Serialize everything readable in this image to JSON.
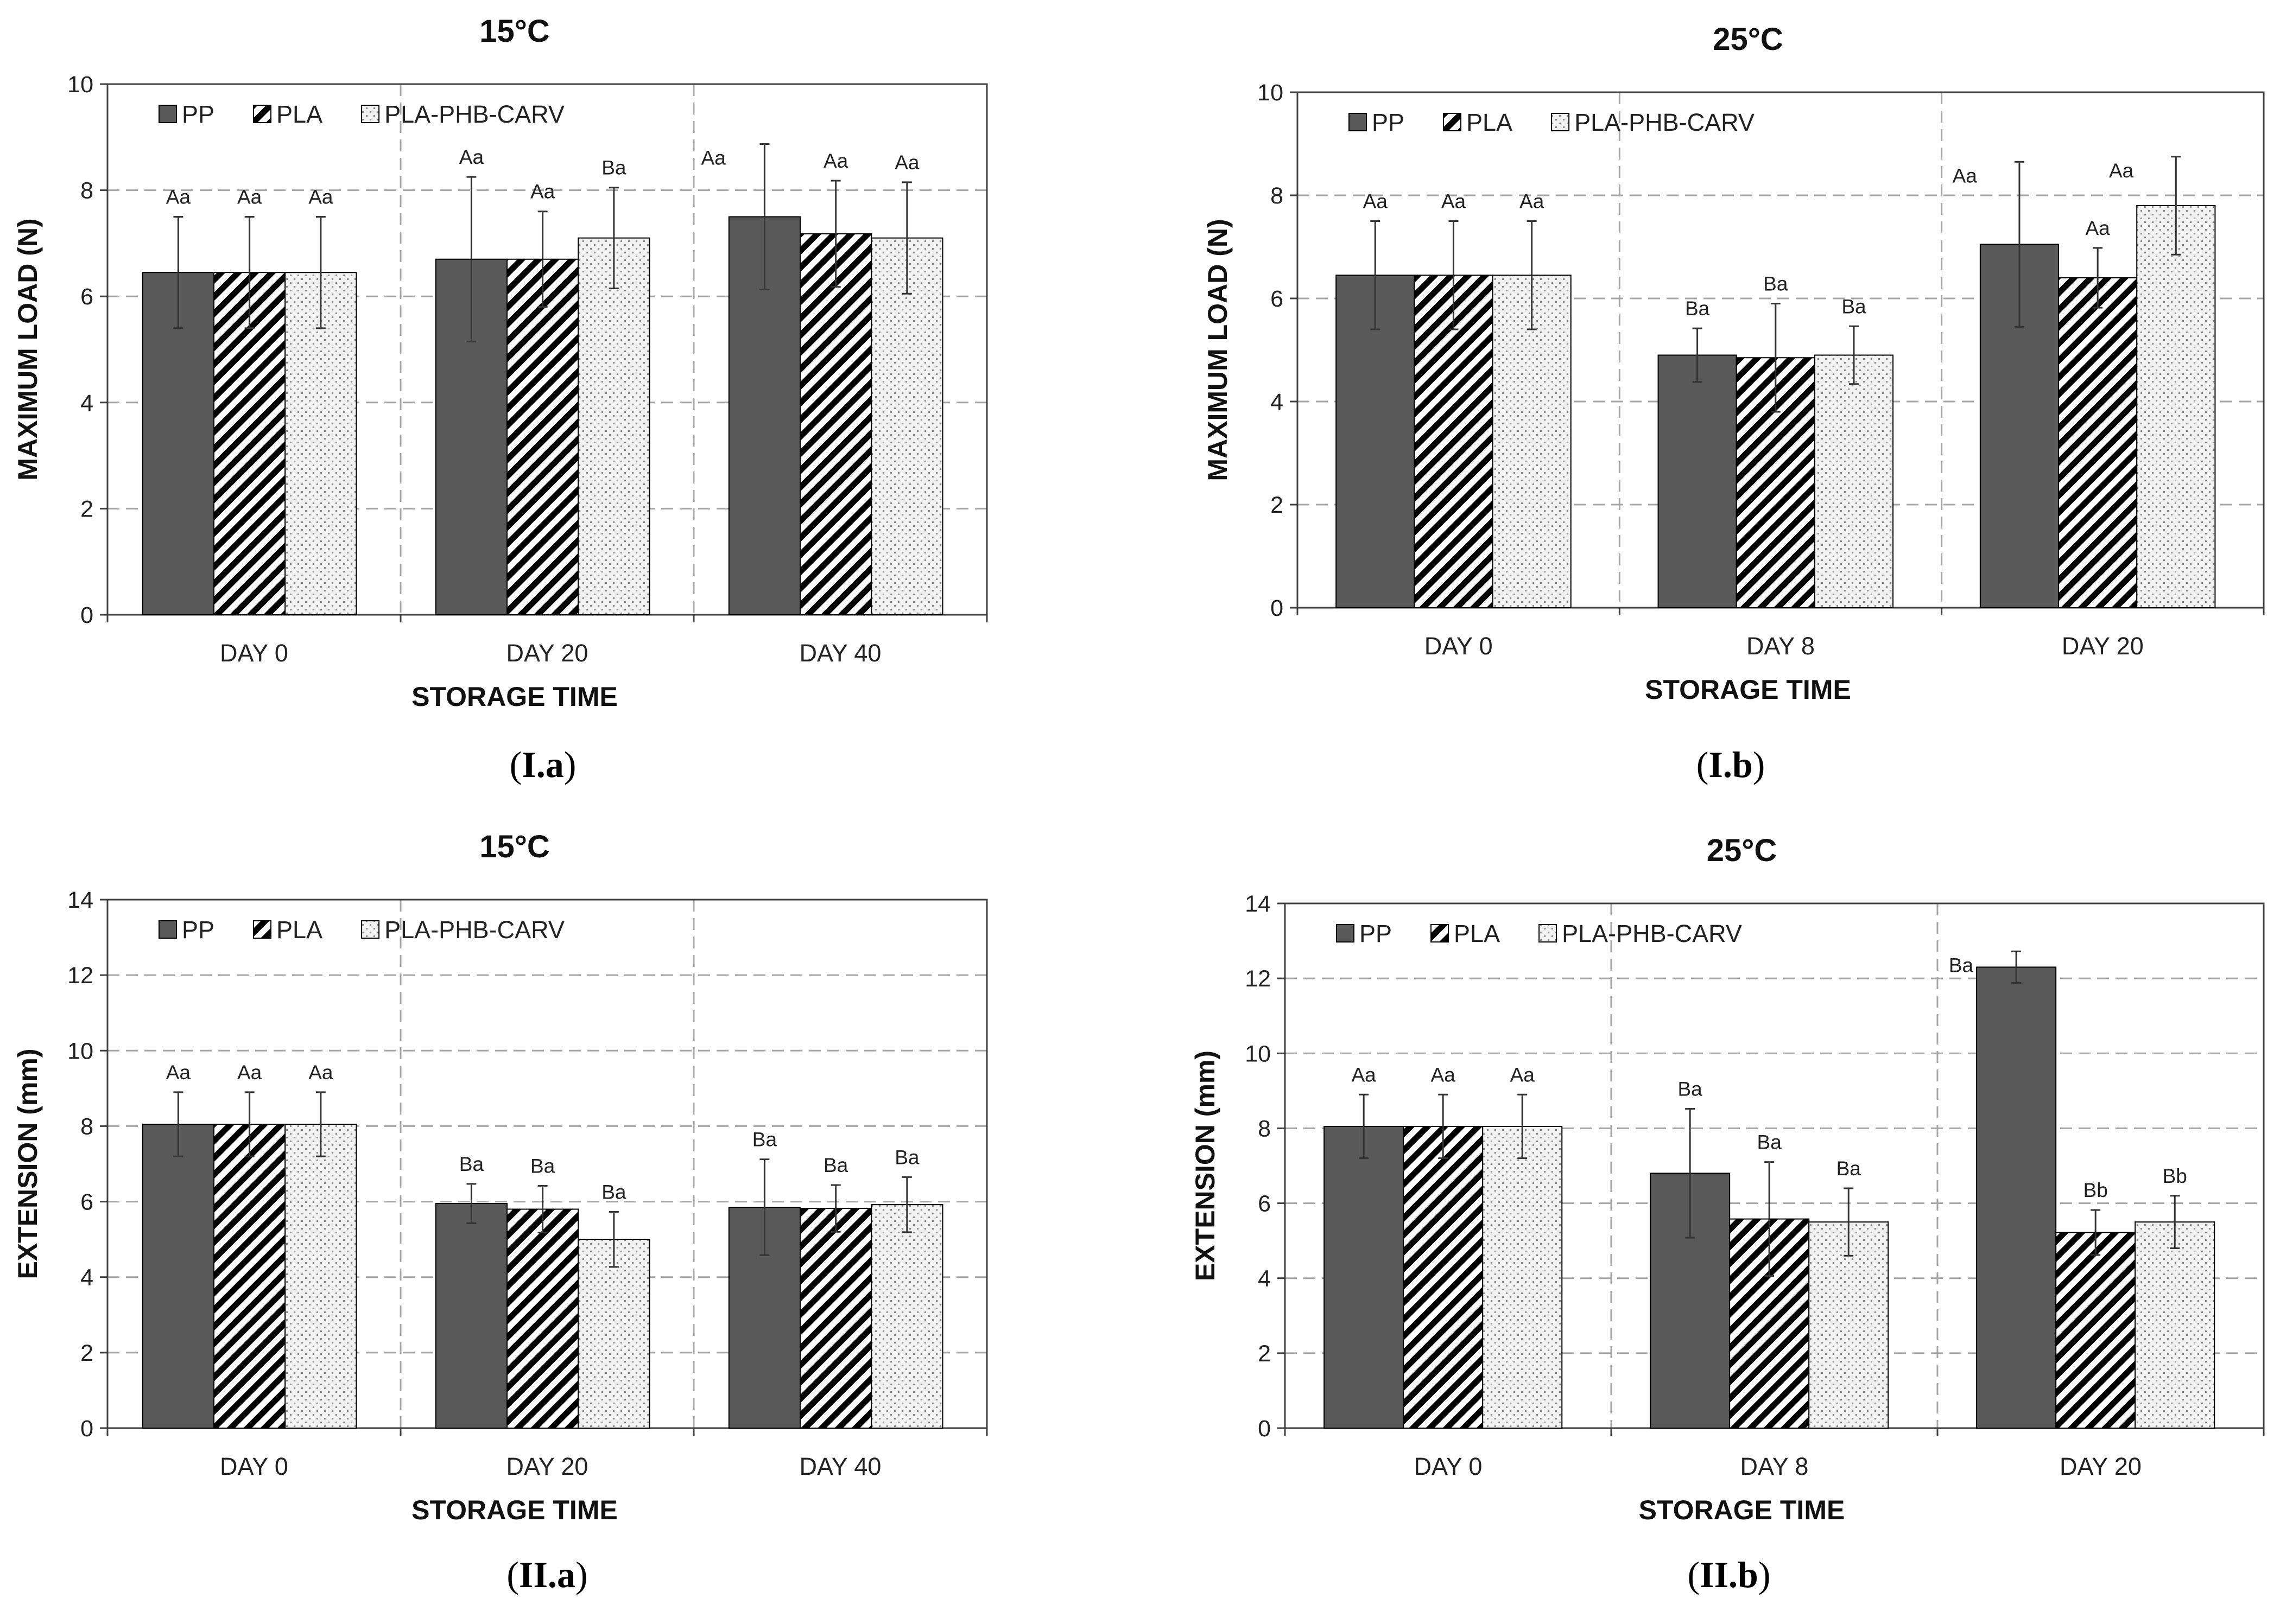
{
  "colors": {
    "pp": "#595959",
    "pla_stripe": "#000000",
    "pla_bg": "#ffffff",
    "carv_bg": "#f2f2f2",
    "carv_dot": "#8a8a8a",
    "grid": "#a6a6a6",
    "axis": "#404040",
    "error_bar": "#333333",
    "plot_bg": "#ffffff"
  },
  "chart_data": [
    {
      "type": "bar",
      "title": "15°C",
      "caption": {
        "open": "(",
        "label": "I.a",
        "close": ")"
      },
      "xlabel": "STORAGE TIME",
      "ylabel": "MAXIMUM LOAD (N)",
      "ylim": [
        0,
        10
      ],
      "yticks": [
        0,
        2,
        4,
        6,
        8,
        10
      ],
      "grid": true,
      "legend_position": "top-left",
      "categories": [
        "DAY 0",
        "DAY 20",
        "DAY 40"
      ],
      "series": [
        {
          "name": "PP",
          "values": [
            6.45,
            6.7,
            7.5
          ],
          "errors": [
            1.05,
            1.55,
            1.37
          ],
          "labels": [
            "Aa",
            "Aa",
            "Aa"
          ]
        },
        {
          "name": "PLA",
          "values": [
            6.45,
            6.7,
            7.18
          ],
          "errors": [
            1.05,
            0.9,
            1.0
          ],
          "labels": [
            "Aa",
            "Aa",
            "Aa"
          ]
        },
        {
          "name": "PLA-PHB-CARV",
          "values": [
            6.45,
            7.1,
            7.1
          ],
          "errors": [
            1.05,
            0.95,
            1.05
          ],
          "labels": [
            "Aa",
            "Ba",
            "Aa"
          ]
        }
      ]
    },
    {
      "type": "bar",
      "title": "25°C",
      "caption": {
        "open": "(",
        "label": "I.b",
        "close": ")"
      },
      "xlabel": "STORAGE TIME",
      "ylabel": "MAXIMUM LOAD (N)",
      "ylim": [
        0,
        10
      ],
      "yticks": [
        0,
        2,
        4,
        6,
        8,
        10
      ],
      "grid": true,
      "legend_position": "top-left",
      "categories": [
        "DAY 0",
        "DAY 8",
        "DAY 20"
      ],
      "series": [
        {
          "name": "PP",
          "values": [
            6.45,
            4.9,
            7.05
          ],
          "errors": [
            1.05,
            0.52,
            1.6
          ],
          "labels": [
            "Aa",
            "Ba",
            "Aa"
          ]
        },
        {
          "name": "PLA",
          "values": [
            6.45,
            4.85,
            6.4
          ],
          "errors": [
            1.05,
            1.05,
            0.58
          ],
          "labels": [
            "Aa",
            "Ba",
            "Aa"
          ]
        },
        {
          "name": "PLA-PHB-CARV",
          "values": [
            6.45,
            4.9,
            7.8
          ],
          "errors": [
            1.05,
            0.56,
            0.95
          ],
          "labels": [
            "Aa",
            "Ba",
            "Aa"
          ]
        }
      ]
    },
    {
      "type": "bar",
      "title": "15°C",
      "caption": {
        "open": "(",
        "label": "II.a",
        "close": ")"
      },
      "xlabel": "STORAGE TIME",
      "ylabel": "EXTENSION (mm)",
      "ylim": [
        0,
        14
      ],
      "yticks": [
        0,
        2,
        4,
        6,
        8,
        10,
        12,
        14
      ],
      "grid": true,
      "legend_position": "top-left",
      "categories": [
        "DAY 0",
        "DAY 20",
        "DAY 40"
      ],
      "series": [
        {
          "name": "PP",
          "values": [
            8.05,
            5.95,
            5.85
          ],
          "errors": [
            0.85,
            0.52,
            1.27
          ],
          "labels": [
            "Aa",
            "Ba",
            "Ba"
          ]
        },
        {
          "name": "PLA",
          "values": [
            8.05,
            5.8,
            5.82
          ],
          "errors": [
            0.85,
            0.62,
            0.62
          ],
          "labels": [
            "Aa",
            "Ba",
            "Ba"
          ]
        },
        {
          "name": "PLA-PHB-CARV",
          "values": [
            8.05,
            5.0,
            5.92
          ],
          "errors": [
            0.85,
            0.73,
            0.73
          ],
          "labels": [
            "Aa",
            "Ba",
            "Ba"
          ]
        }
      ]
    },
    {
      "type": "bar",
      "title": "25°C",
      "caption": {
        "open": "(",
        "label": "II.b",
        "close": ")"
      },
      "xlabel": "STORAGE TIME",
      "ylabel": "EXTENSION (mm)",
      "ylim": [
        0,
        14
      ],
      "yticks": [
        0,
        2,
        4,
        6,
        8,
        10,
        12,
        14
      ],
      "grid": true,
      "legend_position": "top-left",
      "categories": [
        "DAY 0",
        "DAY 8",
        "DAY 20"
      ],
      "series": [
        {
          "name": "PP",
          "values": [
            8.05,
            6.8,
            12.3
          ],
          "errors": [
            0.85,
            1.72,
            0.42
          ],
          "labels": [
            "Aa",
            "Ba",
            "Ba"
          ]
        },
        {
          "name": "PLA",
          "values": [
            8.05,
            5.58,
            5.22
          ],
          "errors": [
            0.85,
            1.52,
            0.6
          ],
          "labels": [
            "Aa",
            "Ba",
            "Bb"
          ]
        },
        {
          "name": "PLA-PHB-CARV",
          "values": [
            8.05,
            5.5,
            5.5
          ],
          "errors": [
            0.85,
            0.9,
            0.7
          ],
          "labels": [
            "Aa",
            "Ba",
            "Bb"
          ]
        }
      ]
    }
  ]
}
